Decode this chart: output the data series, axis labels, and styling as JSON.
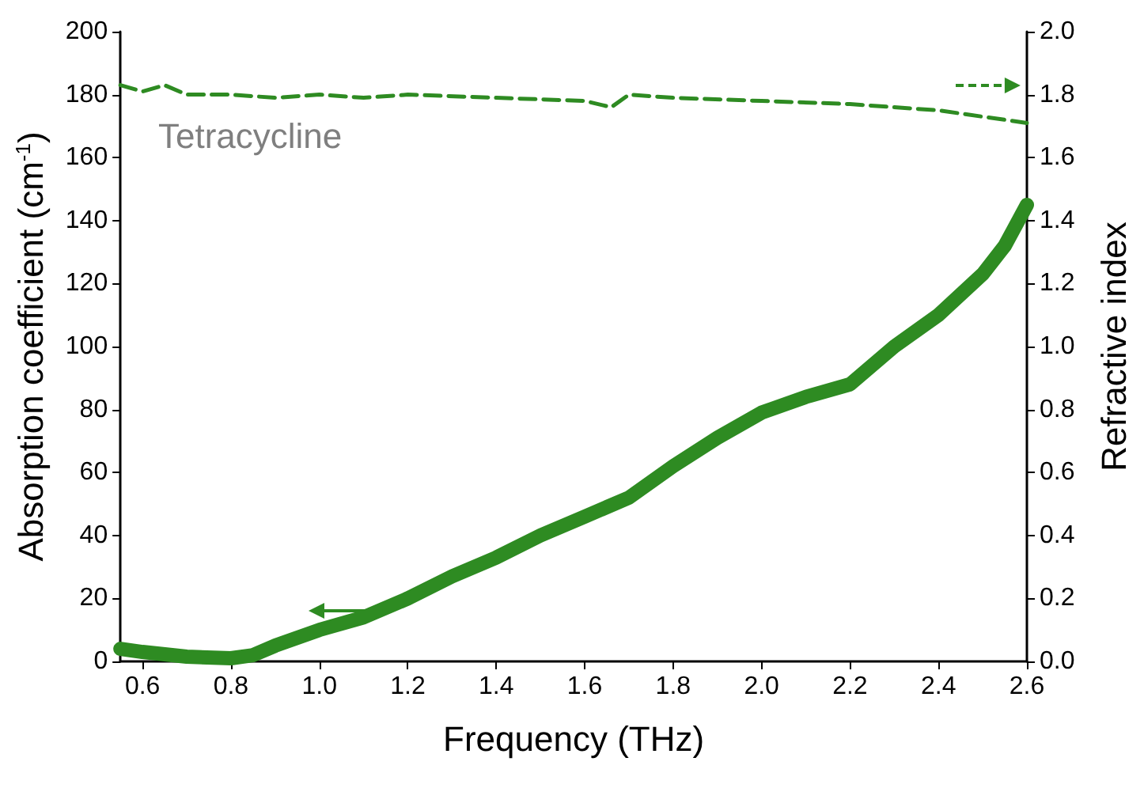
{
  "chart_data": {
    "type": "line",
    "xlabel": "Frequency (THz)",
    "ylabel": "Absorption coefficient (cm$^{-1}$)",
    "y2label": "Refractive index",
    "annotations": [
      "Tetracycline"
    ],
    "xlim": [
      0.55,
      2.6
    ],
    "xticks": [
      0.6,
      0.8,
      {
        "value": 1,
        "label": "1.0"
      },
      1.2,
      1.4,
      1.6,
      1.8,
      {
        "value": 2,
        "label": "2.0"
      },
      2.2,
      2.4,
      2.6
    ],
    "ylim": [
      0,
      200
    ],
    "yticks": [
      0,
      20,
      40,
      60,
      80,
      100,
      120,
      140,
      160,
      180,
      200
    ],
    "y2lim": [
      0,
      2.0
    ],
    "y2ticks": [
      {
        "value": 0,
        "label": "0.0"
      },
      0.2,
      0.4,
      0.6,
      0.8,
      {
        "value": 1,
        "label": "1.0"
      },
      1.2,
      1.4,
      1.6,
      1.8,
      {
        "value": 2,
        "label": "2.0"
      }
    ],
    "marker": "none",
    "series": [
      {
        "color": "#2e8b22",
        "line_style": "solid",
        "x": [
          0.55,
          0.6,
          0.7,
          0.8,
          0.85,
          0.9,
          1.0,
          1.1,
          1.2,
          1.3,
          1.4,
          1.5,
          1.6,
          1.7,
          1.8,
          1.9,
          2.0,
          2.1,
          2.2,
          2.3,
          2.4,
          2.5,
          2.55,
          2.6
        ],
        "values": [
          4,
          3,
          1.5,
          1,
          2,
          5,
          10,
          14,
          20,
          27,
          33,
          40,
          46,
          52,
          62,
          71,
          79,
          84,
          88,
          100,
          110,
          123,
          132,
          145
        ]
      },
      {
        "color": "#2e8b22",
        "line_style": "dashed",
        "axis": "y2",
        "x": [
          0.55,
          0.6,
          0.65,
          0.7,
          0.8,
          0.9,
          1.0,
          1.1,
          1.2,
          1.4,
          1.6,
          1.66,
          1.7,
          1.8,
          2.0,
          2.2,
          2.4,
          2.5,
          2.6
        ],
        "values": [
          1.83,
          1.81,
          1.83,
          1.8,
          1.8,
          1.79,
          1.8,
          1.79,
          1.8,
          1.79,
          1.78,
          1.76,
          1.8,
          1.79,
          1.78,
          1.77,
          1.75,
          1.73,
          1.71
        ]
      }
    ]
  }
}
